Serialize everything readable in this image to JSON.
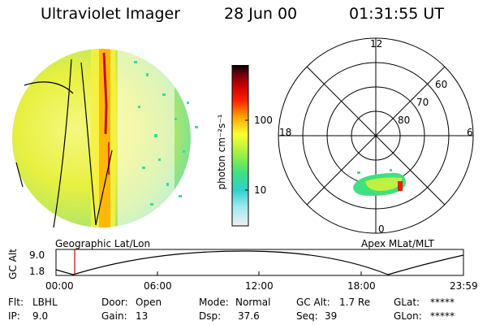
{
  "header": {
    "instrument": "Ultraviolet Imager",
    "date": "28 Jun 00",
    "time": "01:31:55 UT"
  },
  "colorbar": {
    "label": "photon cm⁻²s⁻¹",
    "ticks": [
      "100",
      "10"
    ]
  },
  "left_panel": {
    "caption": "Geographic Lat/Lon"
  },
  "right_panel": {
    "caption": "Apex MLat/MLT",
    "mlt_labels": [
      "12",
      "18",
      "6",
      "0"
    ],
    "lat_labels": [
      "60",
      "70",
      "80"
    ]
  },
  "altitude_plot": {
    "ylabel": "GC Alt",
    "y_ticks": [
      "9.0",
      "1.8"
    ],
    "x_ticks": [
      "00:00",
      "06:00",
      "12:00",
      "18:00",
      "23:59"
    ],
    "current_time_marker": "01:31:55"
  },
  "status": {
    "flt_label": "Flt:",
    "flt_value": "LBHL",
    "ip_label": "IP:",
    "ip_value": "9.0",
    "door_label": "Door:",
    "door_value": "Open",
    "gain_label": "Gain:",
    "gain_value": "13",
    "mode_label": "Mode:",
    "mode_value": "Normal",
    "dsp_label": "Dsp:",
    "dsp_value": "37.6",
    "gcalt_label": "GC Alt:",
    "gcalt_value": "1.7 Re",
    "seq_label": "Seq:",
    "seq_value": "39",
    "glat_label": "GLat:",
    "glat_value": "*****",
    "glon_label": "GLon:",
    "glon_value": "*****"
  },
  "colors": {
    "marker": "#cc0000",
    "colorbar_stops": [
      "#f0f0f0",
      "#30d0d0",
      "#40e080",
      "#a0f040",
      "#ffff30",
      "#ffa000",
      "#ff2000",
      "#c00000",
      "#600010",
      "#000000"
    ]
  }
}
